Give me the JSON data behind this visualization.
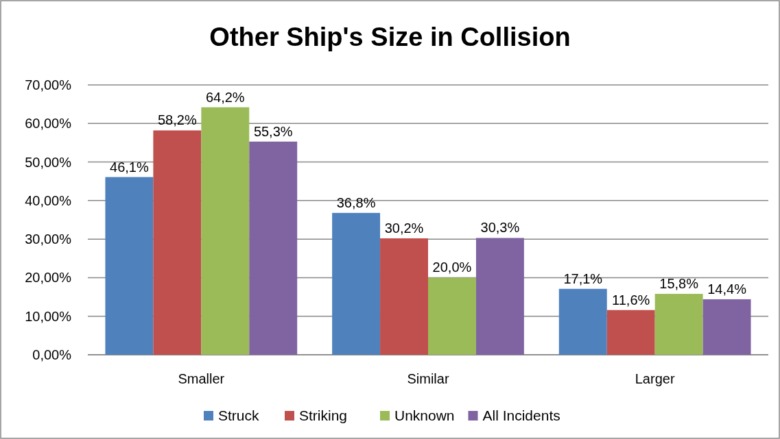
{
  "chart_data": {
    "type": "bar",
    "title": "Other Ship's Size in Collision",
    "categories": [
      "Smaller",
      "Similar",
      "Larger"
    ],
    "series": [
      {
        "name": "Struck",
        "color": "#4f81bd",
        "values": [
          46.1,
          36.8,
          17.1
        ],
        "value_labels": [
          "46,1%",
          "36,8%",
          "17,1%"
        ]
      },
      {
        "name": "Striking",
        "color": "#c0504d",
        "values": [
          58.2,
          30.2,
          11.6
        ],
        "value_labels": [
          "58,2%",
          "30,2%",
          "11,6%"
        ]
      },
      {
        "name": "Unknown",
        "color": "#9bbb59",
        "values": [
          64.2,
          20.0,
          15.8
        ],
        "value_labels": [
          "64,2%",
          "20,0%",
          "15,8%"
        ]
      },
      {
        "name": "All Incidents",
        "color": "#8064a2",
        "values": [
          55.3,
          30.3,
          14.4
        ],
        "value_labels": [
          "55,3%",
          "30,3%",
          "14,4%"
        ]
      }
    ],
    "ylim": [
      0,
      70
    ],
    "yticks": [
      {
        "value": 0,
        "label": "0,00%"
      },
      {
        "value": 10,
        "label": "10,00%"
      },
      {
        "value": 20,
        "label": "20,00%"
      },
      {
        "value": 30,
        "label": "30,00%"
      },
      {
        "value": 40,
        "label": "40,00%"
      },
      {
        "value": 50,
        "label": "50,00%"
      },
      {
        "value": 60,
        "label": "60,00%"
      },
      {
        "value": 70,
        "label": "70,00%"
      }
    ],
    "grid": "y",
    "legend": "bottom"
  }
}
